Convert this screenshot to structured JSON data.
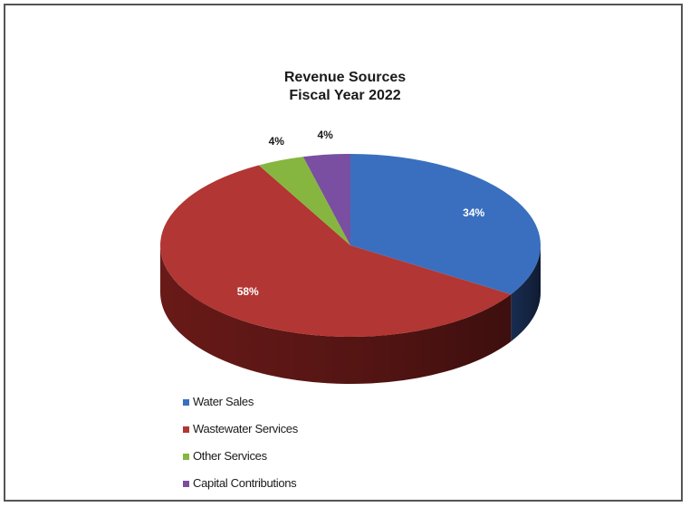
{
  "chart_data": {
    "type": "pie",
    "style": "3d",
    "title": "Revenue Sources",
    "subtitle": "Fiscal Year 2022",
    "unit": "%",
    "legend_position": "bottom-left",
    "slices": [
      {
        "label": "Water Sales",
        "value": 34,
        "display": "34%",
        "color": "#3a6fbf",
        "side_color": "#1a2f55"
      },
      {
        "label": "Wastewater Services",
        "value": 58,
        "display": "58%",
        "color": "#b23633",
        "side_color": "#6e1b19"
      },
      {
        "label": "Other Services",
        "value": 4,
        "display": "4%",
        "color": "#86b640",
        "side_color": "#4d6a22"
      },
      {
        "label": "Capital Contributions",
        "value": 4,
        "display": "4%",
        "color": "#7a4ea0",
        "side_color": "#44295a"
      }
    ]
  }
}
